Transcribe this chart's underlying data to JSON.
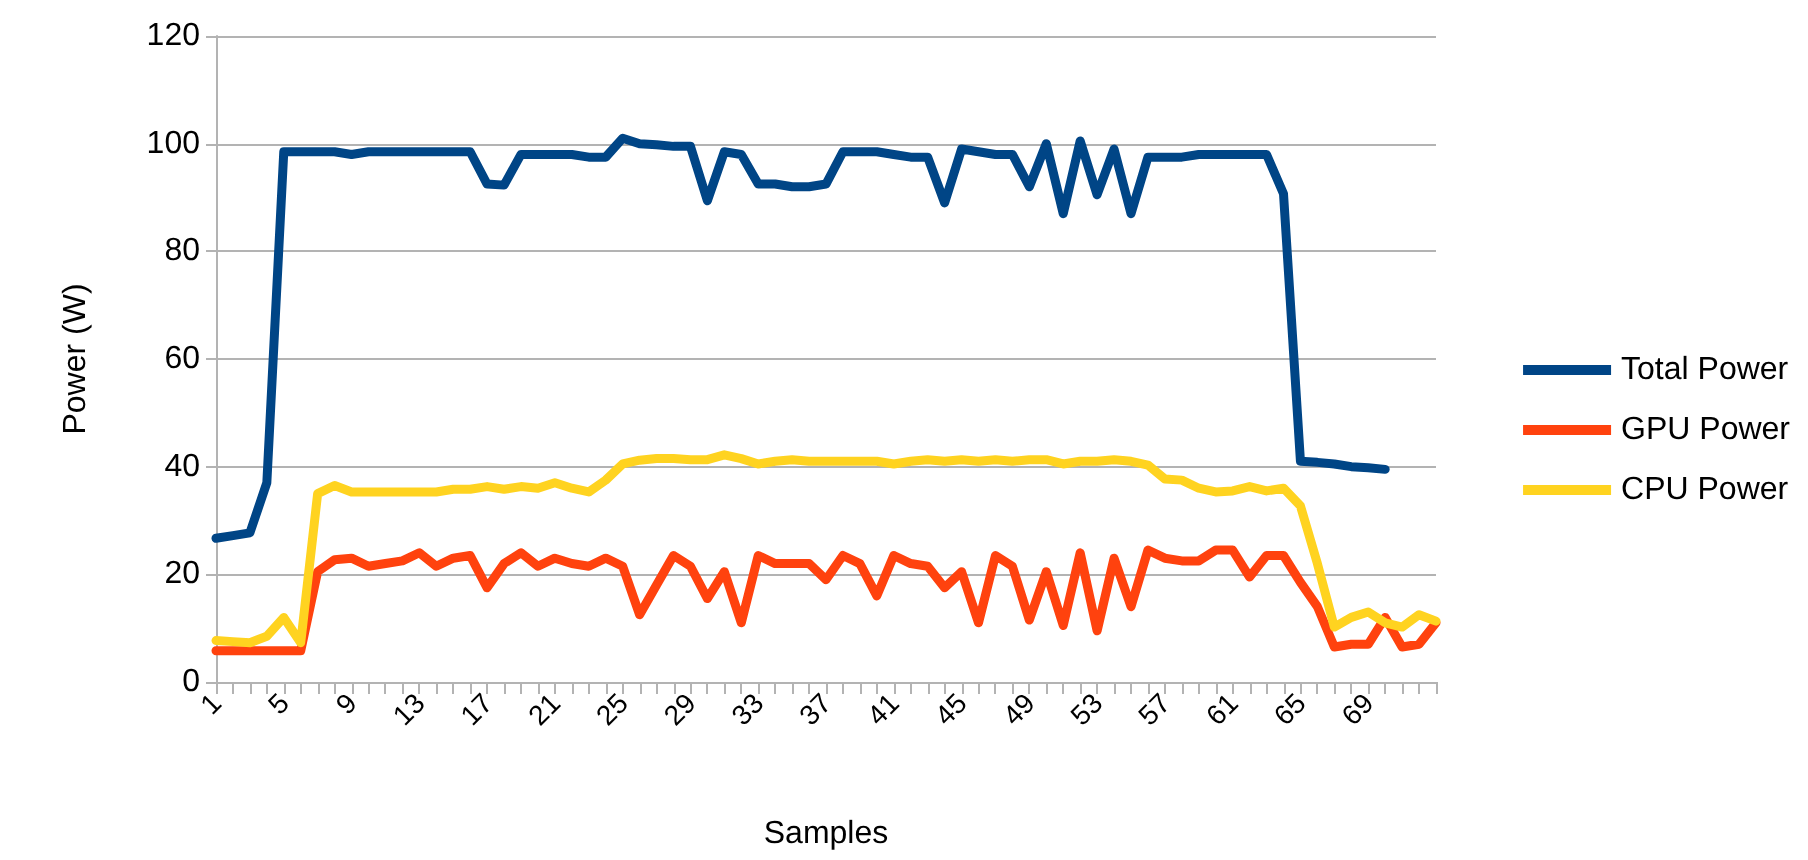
{
  "chart_data": {
    "type": "line",
    "xlabel": "Samples",
    "ylabel": "Power (W)",
    "categories": [
      "1",
      null,
      null,
      null,
      "5",
      null,
      null,
      null,
      "9",
      null,
      null,
      null,
      "13",
      null,
      null,
      null,
      "17",
      null,
      null,
      null,
      "21",
      null,
      null,
      null,
      "25",
      null,
      null,
      null,
      "29",
      null,
      null,
      null,
      "33",
      null,
      null,
      null,
      "37",
      null,
      null,
      null,
      "41",
      null,
      null,
      null,
      "45",
      null,
      null,
      null,
      "49",
      null,
      null,
      null,
      "53",
      null,
      null,
      null,
      "57",
      null,
      null,
      null,
      "61",
      null,
      null,
      null,
      "65",
      null,
      null,
      null,
      "69",
      null,
      null,
      null,
      null
    ],
    "ylim": [
      0,
      120
    ],
    "yticks": [
      0,
      20,
      40,
      60,
      80,
      100,
      120
    ],
    "grid": "y",
    "legend": "right",
    "marker": "none",
    "line_style": "solid",
    "series": [
      {
        "name": "Total Power",
        "color": "#004586",
        "values": [
          26.7,
          27.2,
          27.7,
          37,
          98.5,
          98.5,
          98.5,
          98.5,
          98,
          98.5,
          98.5,
          98.5,
          98.5,
          98.5,
          98.5,
          98.5,
          92.5,
          92.3,
          98,
          98,
          98,
          98,
          97.5,
          97.5,
          101,
          100,
          99.8,
          99.5,
          99.5,
          89.4,
          98.5,
          98,
          92.5,
          92.5,
          92,
          92,
          92.5,
          98.5,
          98.5,
          98.5,
          98,
          97.5,
          97.5,
          89,
          99,
          98.5,
          98,
          98,
          92,
          100,
          87,
          100.5,
          90.5,
          99,
          87,
          97.5,
          97.5,
          97.5,
          98,
          98,
          98,
          98,
          98,
          90.7,
          41,
          40.8,
          40.5,
          40,
          39.8,
          39.5,
          null,
          null,
          null
        ]
      },
      {
        "name": "GPU Power",
        "color": "#ff420e",
        "values": [
          5.8,
          5.8,
          5.8,
          5.8,
          5.8,
          5.8,
          20.5,
          22.7,
          23,
          21.5,
          22,
          22.5,
          24,
          21.5,
          23,
          23.5,
          17.5,
          22,
          24,
          21.5,
          23,
          22,
          21.5,
          23,
          21.5,
          12.5,
          18,
          23.5,
          21.5,
          15.5,
          20.5,
          11,
          23.5,
          22,
          22,
          22,
          19,
          23.5,
          22,
          16,
          23.5,
          22,
          21.5,
          17.5,
          20.5,
          11,
          23.5,
          21.5,
          11.5,
          20.5,
          10.5,
          24,
          9.5,
          23,
          14,
          24.5,
          23,
          22.5,
          22.5,
          24.5,
          24.5,
          19.5,
          23.5,
          23.5,
          18.5,
          14,
          6.5,
          7,
          7,
          12,
          6.5,
          7,
          11
        ]
      },
      {
        "name": "CPU Power",
        "color": "#ffd320",
        "values": [
          7.7,
          7.5,
          7.3,
          8.5,
          12,
          7.3,
          35,
          36.5,
          35.3,
          35.3,
          35.3,
          35.3,
          35.3,
          35.3,
          35.8,
          35.8,
          36.3,
          35.8,
          36.3,
          36,
          37,
          36,
          35.3,
          37.5,
          40.5,
          41.2,
          41.5,
          41.5,
          41.3,
          41.3,
          42.2,
          41.5,
          40.5,
          41,
          41.3,
          41,
          41,
          41,
          41,
          41,
          40.5,
          41,
          41.3,
          41,
          41.3,
          41,
          41.3,
          41,
          41.3,
          41.3,
          40.5,
          41,
          41,
          41.3,
          41,
          40.3,
          37.7,
          37.5,
          36,
          35.3,
          35.5,
          36.3,
          35.5,
          36,
          32.7,
          22,
          10.2,
          12,
          13,
          11,
          10.2,
          12.5,
          11.3
        ]
      }
    ]
  }
}
